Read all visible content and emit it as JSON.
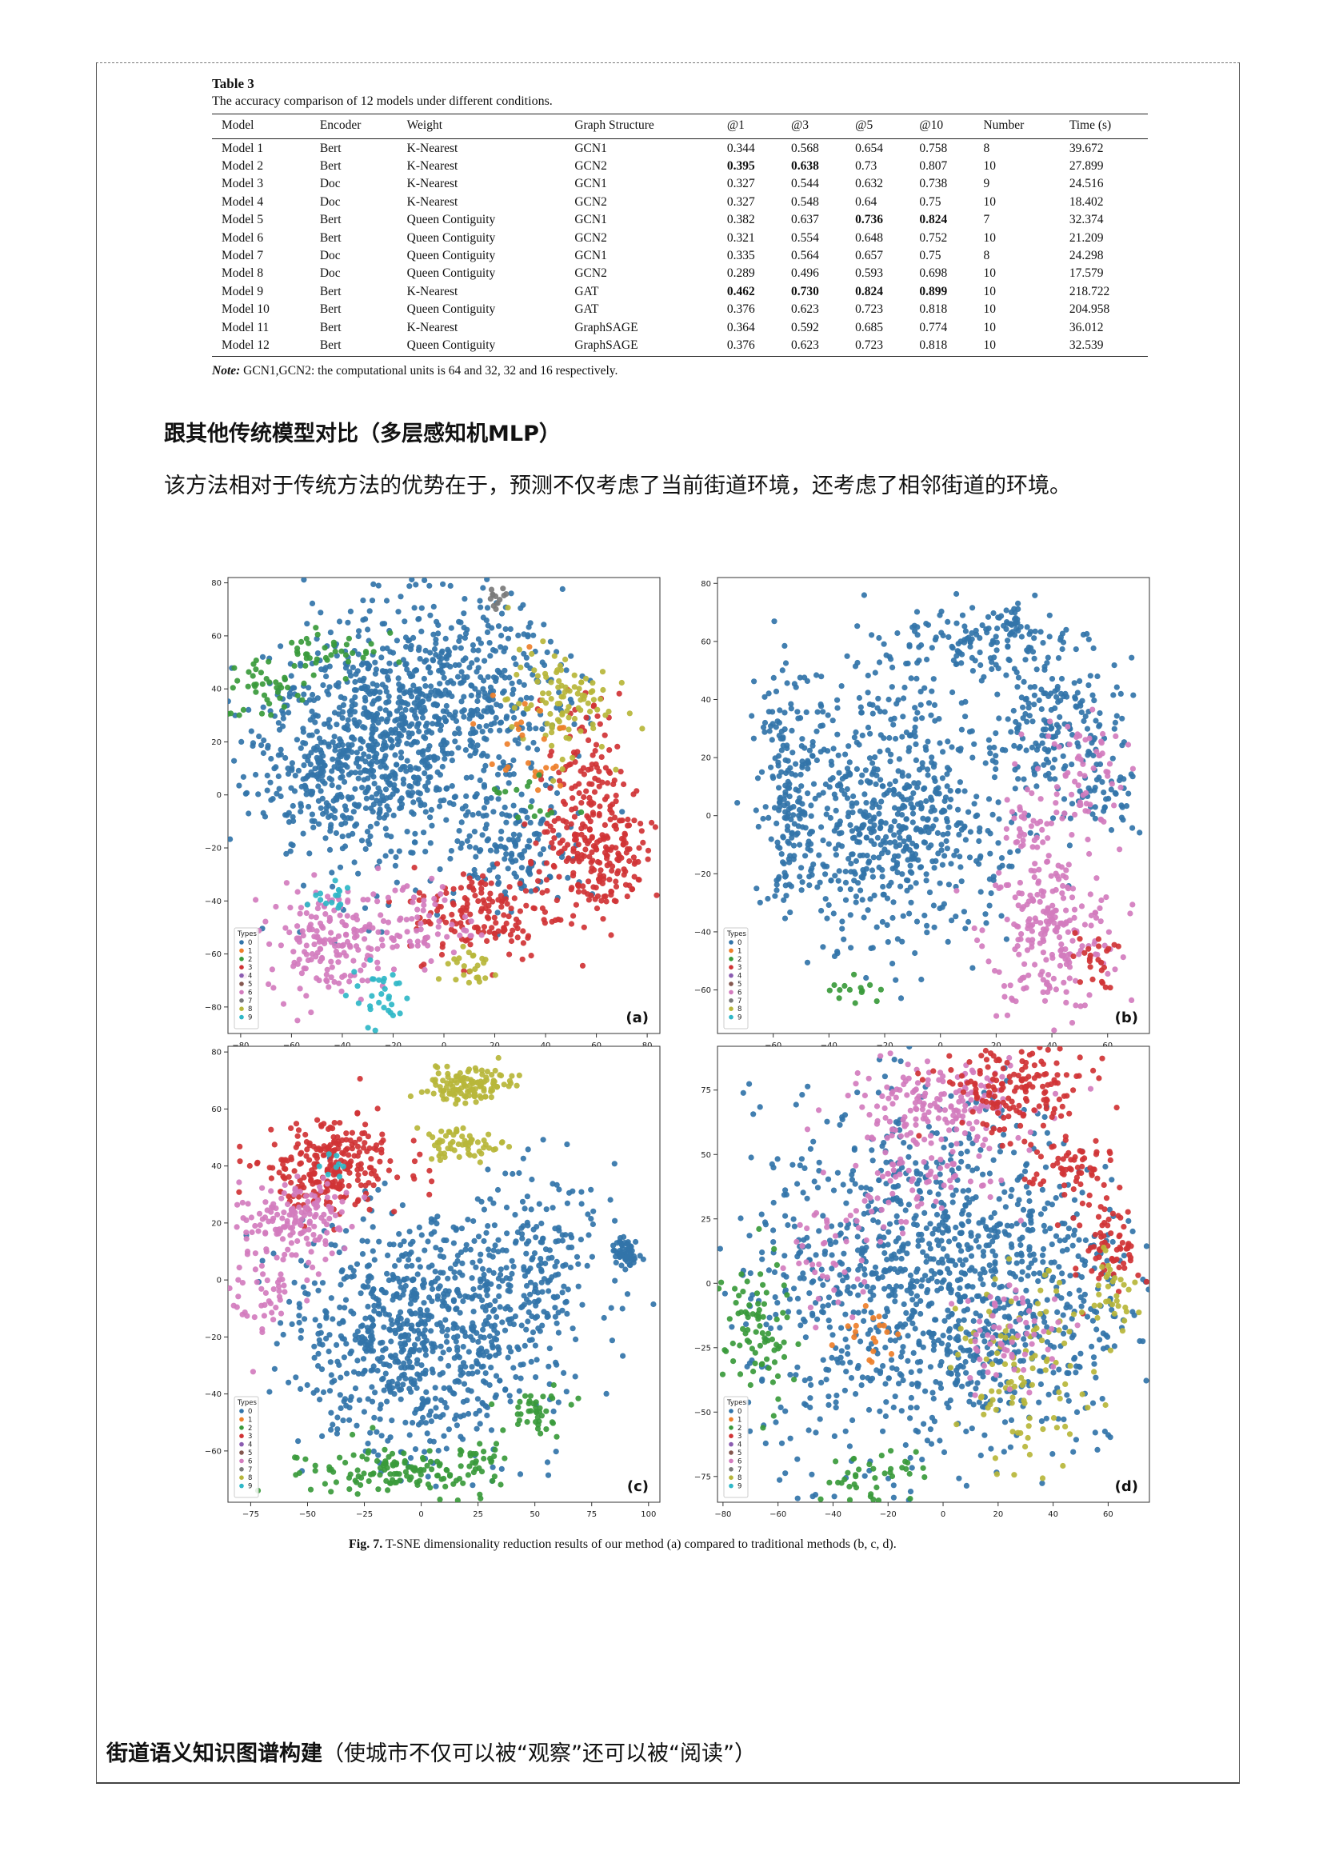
{
  "table": {
    "label": "Table 3",
    "caption": "The accuracy comparison of 12 models under different conditions.",
    "columns": [
      "Model",
      "Encoder",
      "Weight",
      "Graph Structure",
      "@1",
      "@3",
      "@5",
      "@10",
      "Number",
      "Time (s)"
    ],
    "rows": [
      [
        "Model 1",
        "Bert",
        "K-Nearest",
        "GCN1",
        "0.344",
        "0.568",
        "0.654",
        "0.758",
        "8",
        "39.672"
      ],
      [
        "Model 2",
        "Bert",
        "K-Nearest",
        "GCN2",
        "0.395",
        "0.638",
        "0.73",
        "0.807",
        "10",
        "27.899"
      ],
      [
        "Model 3",
        "Doc",
        "K-Nearest",
        "GCN1",
        "0.327",
        "0.544",
        "0.632",
        "0.738",
        "9",
        "24.516"
      ],
      [
        "Model 4",
        "Doc",
        "K-Nearest",
        "GCN2",
        "0.327",
        "0.548",
        "0.64",
        "0.75",
        "10",
        "18.402"
      ],
      [
        "Model 5",
        "Bert",
        "Queen Contiguity",
        "GCN1",
        "0.382",
        "0.637",
        "0.736",
        "0.824",
        "7",
        "32.374"
      ],
      [
        "Model 6",
        "Bert",
        "Queen Contiguity",
        "GCN2",
        "0.321",
        "0.554",
        "0.648",
        "0.752",
        "10",
        "21.209"
      ],
      [
        "Model 7",
        "Doc",
        "Queen Contiguity",
        "GCN1",
        "0.335",
        "0.564",
        "0.657",
        "0.75",
        "8",
        "24.298"
      ],
      [
        "Model 8",
        "Doc",
        "Queen Contiguity",
        "GCN2",
        "0.289",
        "0.496",
        "0.593",
        "0.698",
        "10",
        "17.579"
      ],
      [
        "Model 9",
        "Bert",
        "K-Nearest",
        "GAT",
        "0.462",
        "0.730",
        "0.824",
        "0.899",
        "10",
        "218.722"
      ],
      [
        "Model 10",
        "Bert",
        "Queen Contiguity",
        "GAT",
        "0.376",
        "0.623",
        "0.723",
        "0.818",
        "10",
        "204.958"
      ],
      [
        "Model 11",
        "Bert",
        "K-Nearest",
        "GraphSAGE",
        "0.364",
        "0.592",
        "0.685",
        "0.774",
        "10",
        "36.012"
      ],
      [
        "Model 12",
        "Bert",
        "Queen Contiguity",
        "GraphSAGE",
        "0.376",
        "0.623",
        "0.723",
        "0.818",
        "10",
        "32.539"
      ]
    ],
    "bold_cells": [
      [
        1,
        4
      ],
      [
        1,
        5
      ],
      [
        4,
        6
      ],
      [
        4,
        7
      ],
      [
        8,
        4
      ],
      [
        8,
        5
      ],
      [
        8,
        6
      ],
      [
        8,
        7
      ]
    ],
    "note_label": "Note:",
    "note_text": " GCN1,GCN2: the computational units is 64 and 32, 32 and 16 respectively."
  },
  "heading_mlp": "跟其他传统模型对比（多层感知机MLP）",
  "paragraph": "该方法相对于传统方法的优势在于，预测不仅考虑了当前街道环境，还考虑了相邻街道的环境。",
  "figure_caption_label": "Fig. 7.",
  "figure_caption_text": " T-SNE dimensionality reduction results of our method (a) compared to traditional methods (b, c, d).",
  "bottom_heading_strong": "街道语义知识图谱构建",
  "bottom_heading_rest": "（使城市不仅可以被“观察”还可以被“阅读”）",
  "chart_data": [
    {
      "type": "scatter",
      "panel": "(a)",
      "xlim": [
        -85,
        85
      ],
      "ylim": [
        -90,
        82
      ],
      "xticks": [
        -80,
        -60,
        -40,
        -20,
        0,
        20,
        40,
        60,
        80
      ],
      "yticks": [
        80,
        60,
        40,
        20,
        0,
        -20,
        -40,
        -60,
        -80
      ],
      "legend_title": "Types",
      "legend_position": "lower-left",
      "legend": [
        "0",
        "1",
        "2",
        "3",
        "4",
        "5",
        "6",
        "7",
        "8",
        "9"
      ]
    },
    {
      "type": "scatter",
      "panel": "(b)",
      "xlim": [
        -80,
        75
      ],
      "ylim": [
        -75,
        82
      ],
      "xticks": [
        -60,
        -40,
        -20,
        0,
        20,
        40,
        60
      ],
      "yticks": [
        80,
        60,
        40,
        20,
        0,
        -20,
        -40,
        -60
      ],
      "legend_title": "Types",
      "legend_position": "lower-left",
      "legend": [
        "0",
        "1",
        "2",
        "3",
        "4",
        "5",
        "6",
        "7",
        "8",
        "9"
      ]
    },
    {
      "type": "scatter",
      "panel": "(c)",
      "xlim": [
        -85,
        105
      ],
      "ylim": [
        -78,
        82
      ],
      "xticks": [
        -75,
        -50,
        -25,
        0,
        25,
        50,
        75,
        100
      ],
      "yticks": [
        80,
        60,
        40,
        20,
        0,
        -20,
        -40,
        -60
      ],
      "legend_title": "Types",
      "legend_position": "lower-left",
      "legend": [
        "0",
        "1",
        "2",
        "3",
        "4",
        "5",
        "6",
        "7",
        "8",
        "9"
      ]
    },
    {
      "type": "scatter",
      "panel": "(d)",
      "xlim": [
        -82,
        75
      ],
      "ylim": [
        -85,
        92
      ],
      "xticks": [
        -80,
        -60,
        -40,
        -20,
        0,
        20,
        40,
        60
      ],
      "yticks": [
        75,
        50,
        25,
        0,
        -25,
        -50,
        -75
      ],
      "legend_title": "Types",
      "legend_position": "lower-left",
      "legend": [
        "0",
        "1",
        "2",
        "3",
        "4",
        "5",
        "6",
        "7",
        "8",
        "9"
      ]
    }
  ],
  "colors": {
    "type_0": "#3274a9",
    "type_1": "#ee7f2a",
    "type_2": "#3a9a3b",
    "type_3": "#d03335",
    "type_4": "#8a5cb0",
    "type_5": "#84574f",
    "type_6": "#d37cbe",
    "type_7": "#7a7a7a",
    "type_8": "#b7b63a",
    "type_9": "#2fb7c7"
  }
}
